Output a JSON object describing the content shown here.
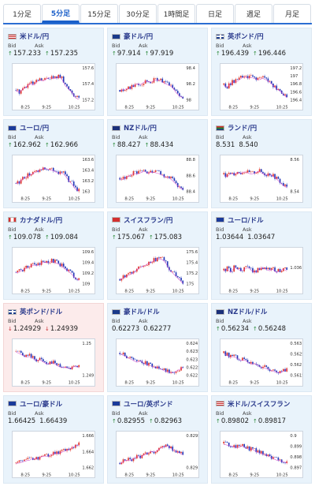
{
  "tabs": [
    {
      "label": "1分足",
      "active": false
    },
    {
      "label": "5分足",
      "active": true
    },
    {
      "label": "15分足",
      "active": false
    },
    {
      "label": "30分足",
      "active": false
    },
    {
      "label": "1時間足",
      "active": false
    },
    {
      "label": "日足",
      "active": false
    },
    {
      "label": "週足",
      "active": false
    },
    {
      "label": "月足",
      "active": false
    }
  ],
  "labels": {
    "bid": "Bid",
    "ask": "Ask"
  },
  "colors": {
    "up": "#e0352b",
    "down": "#2438b8",
    "ma": "#d040c8",
    "arrow_up": "#2a8a3a",
    "arrow_down": "#c8282e",
    "pair_text": "#2a3a8c"
  },
  "cards": [
    {
      "pair": "米ドル/円",
      "flag": "us-flag-icon",
      "bid": "157.233",
      "ask": "157.235",
      "dir": "up",
      "alert": false,
      "yticks": [
        "157.6",
        "157.4",
        "157.2"
      ],
      "xticks": [
        "8:25",
        "9:25",
        "10:25"
      ],
      "chart_data": {
        "type": "candlestick",
        "trend": [
          0.35,
          0.3,
          0.4,
          0.45,
          0.55,
          0.5,
          0.6,
          0.65,
          0.62,
          0.7,
          0.72,
          0.68,
          0.75,
          0.7,
          0.5,
          0.4,
          0.3,
          0.15,
          0.1
        ],
        "ylim": [
          157.1,
          157.7
        ]
      }
    },
    {
      "pair": "豪ドル/円",
      "flag": "au-flag-icon",
      "bid": "97.914",
      "ask": "97.919",
      "dir": "up",
      "alert": false,
      "yticks": [
        "98.4",
        "98.2",
        "98"
      ],
      "xticks": [
        "8:25",
        "9:25",
        "10:25"
      ],
      "chart_data": {
        "type": "candlestick",
        "trend": [
          0.35,
          0.38,
          0.4,
          0.42,
          0.5,
          0.55,
          0.52,
          0.6,
          0.62,
          0.58,
          0.65,
          0.66,
          0.6,
          0.55,
          0.5,
          0.45,
          0.3,
          0.2,
          0.15
        ],
        "ylim": [
          97.9,
          98.5
        ]
      }
    },
    {
      "pair": "英ポンド/円",
      "flag": "gb-flag-icon",
      "bid": "196.439",
      "ask": "196.446",
      "dir": "up",
      "alert": false,
      "yticks": [
        "197.2",
        "197",
        "196.8",
        "196.6",
        "196.4"
      ],
      "xticks": [
        "8:25",
        "9:25",
        "10:25"
      ],
      "chart_data": {
        "type": "candlestick",
        "trend": [
          0.5,
          0.45,
          0.55,
          0.6,
          0.62,
          0.7,
          0.75,
          0.7,
          0.72,
          0.68,
          0.65,
          0.7,
          0.66,
          0.6,
          0.5,
          0.4,
          0.35,
          0.25,
          0.15
        ],
        "ylim": [
          196.3,
          197.3
        ]
      }
    },
    {
      "pair": "ユーロ/円",
      "flag": "eu-flag-icon",
      "bid": "162.962",
      "ask": "162.966",
      "dir": "up",
      "alert": false,
      "yticks": [
        "163.6",
        "163.4",
        "163.2",
        "163"
      ],
      "xticks": [
        "8:25",
        "9:25",
        "10:25"
      ],
      "chart_data": {
        "type": "candlestick",
        "trend": [
          0.3,
          0.35,
          0.45,
          0.5,
          0.55,
          0.6,
          0.65,
          0.7,
          0.75,
          0.72,
          0.7,
          0.66,
          0.6,
          0.62,
          0.55,
          0.4,
          0.3,
          0.15,
          0.1
        ],
        "ylim": [
          162.9,
          163.7
        ]
      }
    },
    {
      "pair": "NZドル/円",
      "flag": "nz-flag-icon",
      "bid": "88.427",
      "ask": "88.434",
      "dir": "up",
      "alert": false,
      "yticks": [
        "88.8",
        "88.6",
        "88.4"
      ],
      "xticks": [
        "8:25",
        "9:25",
        "10:25"
      ],
      "chart_data": {
        "type": "candlestick",
        "trend": [
          0.45,
          0.42,
          0.5,
          0.55,
          0.6,
          0.58,
          0.62,
          0.66,
          0.6,
          0.64,
          0.62,
          0.6,
          0.55,
          0.5,
          0.48,
          0.4,
          0.3,
          0.2,
          0.15
        ],
        "ylim": [
          88.35,
          88.9
        ]
      }
    },
    {
      "pair": "ランド/円",
      "flag": "za-flag-icon",
      "bid": "8.531",
      "ask": "8.540",
      "dir": "none",
      "alert": false,
      "yticks": [
        "8.56",
        "8.54"
      ],
      "xticks": [
        "8:25",
        "9:25",
        "10:25"
      ],
      "chart_data": {
        "type": "candlestick",
        "trend": [
          0.55,
          0.5,
          0.6,
          0.58,
          0.62,
          0.6,
          0.65,
          0.6,
          0.58,
          0.62,
          0.66,
          0.6,
          0.55,
          0.58,
          0.52,
          0.45,
          0.35,
          0.25,
          0.2
        ],
        "ylim": [
          8.52,
          8.58
        ]
      }
    },
    {
      "pair": "カナダドル/円",
      "flag": "ca-flag-icon",
      "bid": "109.078",
      "ask": "109.084",
      "dir": "up",
      "alert": false,
      "yticks": [
        "109.6",
        "109.4",
        "109.2",
        "109"
      ],
      "xticks": [
        "8:25",
        "9:25",
        "10:25"
      ],
      "chart_data": {
        "type": "candlestick",
        "trend": [
          0.4,
          0.42,
          0.48,
          0.52,
          0.58,
          0.62,
          0.6,
          0.65,
          0.7,
          0.68,
          0.72,
          0.7,
          0.65,
          0.6,
          0.5,
          0.45,
          0.35,
          0.25,
          0.18
        ],
        "ylim": [
          108.9,
          109.7
        ]
      }
    },
    {
      "pair": "スイスフラン/円",
      "flag": "ch-flag-icon",
      "bid": "175.067",
      "ask": "175.083",
      "dir": "up",
      "alert": false,
      "yticks": [
        "175.6",
        "175.4",
        "175.2",
        "175"
      ],
      "xticks": [
        "8:25",
        "9:25",
        "10:25"
      ],
      "chart_data": {
        "type": "candlestick",
        "trend": [
          0.2,
          0.25,
          0.3,
          0.35,
          0.4,
          0.5,
          0.55,
          0.6,
          0.65,
          0.7,
          0.75,
          0.8,
          0.78,
          0.7,
          0.5,
          0.4,
          0.3,
          0.2,
          0.1
        ],
        "ylim": [
          174.9,
          175.7
        ]
      }
    },
    {
      "pair": "ユーロ/ドル",
      "flag": "eu-flag-icon",
      "bid": "1.03644",
      "ask": "1.03647",
      "dir": "none",
      "alert": false,
      "yticks": [
        "1.036"
      ],
      "xticks": [
        "8:25",
        "9:25",
        "10:25"
      ],
      "chart_data": {
        "type": "candlestick",
        "trend": [
          0.45,
          0.5,
          0.4,
          0.55,
          0.5,
          0.45,
          0.5,
          0.55,
          0.45,
          0.4,
          0.5,
          0.55,
          0.5,
          0.45,
          0.5,
          0.4,
          0.45,
          0.5,
          0.45
        ],
        "ylim": [
          1.0355,
          1.037
        ]
      }
    },
    {
      "pair": "英ポンド/ドル",
      "flag": "gb-flag-icon",
      "bid": "1.24929",
      "ask": "1.24939",
      "dir": "down",
      "alert": true,
      "yticks": [
        "1.25",
        "1.249"
      ],
      "xticks": [
        "8:25",
        "9:25",
        "10:25"
      ],
      "chart_data": {
        "type": "candlestick",
        "trend": [
          0.75,
          0.7,
          0.65,
          0.6,
          0.62,
          0.55,
          0.5,
          0.52,
          0.45,
          0.4,
          0.45,
          0.42,
          0.35,
          0.3,
          0.32,
          0.28,
          0.3,
          0.35,
          0.3
        ],
        "ylim": [
          1.2485,
          1.251
        ]
      }
    },
    {
      "pair": "豪ドル/ドル",
      "flag": "au-flag-icon",
      "bid": "0.62273",
      "ask": "0.62277",
      "dir": "none",
      "alert": false,
      "yticks": [
        "0.624",
        "0.6235",
        "0.623",
        "0.6225",
        "0.622"
      ],
      "xticks": [
        "8:25",
        "9:25",
        "10:25"
      ],
      "chart_data": {
        "type": "candlestick",
        "trend": [
          0.7,
          0.65,
          0.6,
          0.55,
          0.5,
          0.45,
          0.5,
          0.42,
          0.38,
          0.35,
          0.3,
          0.32,
          0.25,
          0.2,
          0.18,
          0.15,
          0.2,
          0.25,
          0.3
        ],
        "ylim": [
          0.6218,
          0.6242
        ]
      }
    },
    {
      "pair": "NZドル/ドル",
      "flag": "nz-flag-icon",
      "bid": "0.56234",
      "ask": "0.56248",
      "dir": "up",
      "alert": false,
      "yticks": [
        "0.563",
        "0.5625",
        "0.562",
        "0.5615"
      ],
      "xticks": [
        "8:25",
        "9:25",
        "10:25"
      ],
      "chart_data": {
        "type": "candlestick",
        "trend": [
          0.7,
          0.65,
          0.6,
          0.62,
          0.55,
          0.5,
          0.52,
          0.45,
          0.4,
          0.42,
          0.35,
          0.3,
          0.28,
          0.25,
          0.2,
          0.18,
          0.15,
          0.2,
          0.25
        ],
        "ylim": [
          0.5612,
          0.5632
        ]
      }
    },
    {
      "pair": "ユーロ/豪ドル",
      "flag": "eu-flag-icon",
      "bid": "1.66425",
      "ask": "1.66439",
      "dir": "none",
      "alert": false,
      "yticks": [
        "1.666",
        "1.664",
        "1.662"
      ],
      "xticks": [
        "8:25",
        "9:25",
        "10:25"
      ],
      "chart_data": {
        "type": "candlestick",
        "trend": [
          0.2,
          0.22,
          0.25,
          0.28,
          0.3,
          0.35,
          0.32,
          0.38,
          0.42,
          0.4,
          0.45,
          0.5,
          0.48,
          0.52,
          0.55,
          0.6,
          0.65,
          0.7,
          0.72
        ],
        "ylim": [
          1.661,
          1.667
        ]
      }
    },
    {
      "pair": "ユーロ/英ポンド",
      "flag": "eu-flag-icon",
      "bid": "0.82955",
      "ask": "0.82963",
      "dir": "up",
      "alert": false,
      "yticks": [
        "0.8295",
        "0.829"
      ],
      "xticks": [
        "8:25",
        "9:25",
        "10:25"
      ],
      "chart_data": {
        "type": "candlestick",
        "trend": [
          0.2,
          0.25,
          0.3,
          0.28,
          0.35,
          0.4,
          0.38,
          0.45,
          0.5,
          0.55,
          0.52,
          0.6,
          0.65,
          0.7,
          0.68,
          0.6,
          0.55,
          0.5,
          0.45
        ],
        "ylim": [
          0.8287,
          0.83
        ]
      }
    },
    {
      "pair": "米ドル/スイスフラン",
      "flag": "us-flag-icon",
      "bid": "0.89802",
      "ask": "0.89817",
      "dir": "up",
      "alert": false,
      "yticks": [
        "0.9",
        "0.899",
        "0.898",
        "0.897"
      ],
      "xticks": [
        "8:25",
        "9:25",
        "10:25"
      ],
      "chart_data": {
        "type": "candlestick",
        "trend": [
          0.75,
          0.72,
          0.7,
          0.68,
          0.65,
          0.7,
          0.66,
          0.6,
          0.62,
          0.55,
          0.5,
          0.48,
          0.45,
          0.4,
          0.35,
          0.3,
          0.28,
          0.25,
          0.22
        ],
        "ylim": [
          0.8965,
          0.9005
        ]
      }
    }
  ]
}
